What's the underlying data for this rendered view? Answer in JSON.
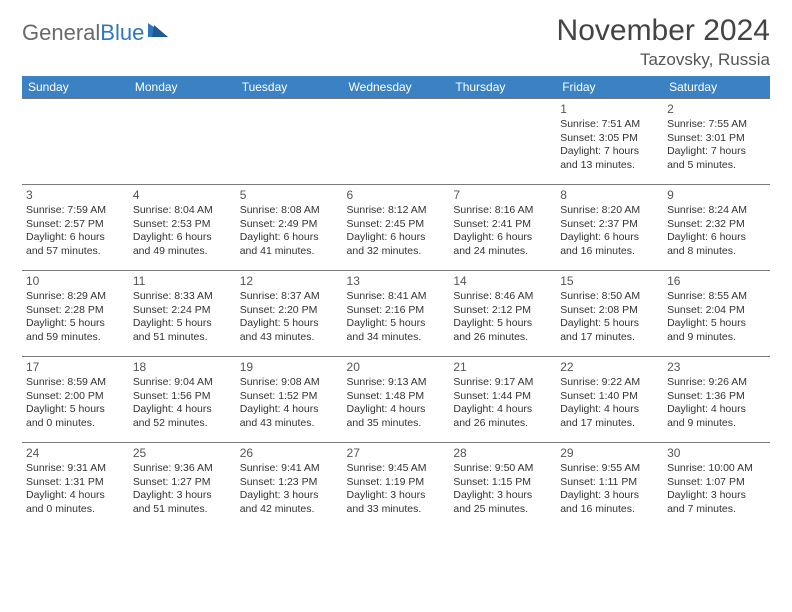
{
  "logo": {
    "word1": "General",
    "word2": "Blue"
  },
  "title": "November 2024",
  "location": "Tazovsky, Russia",
  "colors": {
    "header_bg": "#3a82c4",
    "header_fg": "#ffffff",
    "grid_line": "#7a7a7a",
    "text": "#333333",
    "logo_gray": "#6a6a6a",
    "logo_blue": "#2f78bf"
  },
  "day_headers": [
    "Sunday",
    "Monday",
    "Tuesday",
    "Wednesday",
    "Thursday",
    "Friday",
    "Saturday"
  ],
  "weeks": [
    [
      null,
      null,
      null,
      null,
      null,
      {
        "n": "1",
        "sr": "7:51 AM",
        "ss": "3:05 PM",
        "dl": "7 hours and 13 minutes."
      },
      {
        "n": "2",
        "sr": "7:55 AM",
        "ss": "3:01 PM",
        "dl": "7 hours and 5 minutes."
      }
    ],
    [
      {
        "n": "3",
        "sr": "7:59 AM",
        "ss": "2:57 PM",
        "dl": "6 hours and 57 minutes."
      },
      {
        "n": "4",
        "sr": "8:04 AM",
        "ss": "2:53 PM",
        "dl": "6 hours and 49 minutes."
      },
      {
        "n": "5",
        "sr": "8:08 AM",
        "ss": "2:49 PM",
        "dl": "6 hours and 41 minutes."
      },
      {
        "n": "6",
        "sr": "8:12 AM",
        "ss": "2:45 PM",
        "dl": "6 hours and 32 minutes."
      },
      {
        "n": "7",
        "sr": "8:16 AM",
        "ss": "2:41 PM",
        "dl": "6 hours and 24 minutes."
      },
      {
        "n": "8",
        "sr": "8:20 AM",
        "ss": "2:37 PM",
        "dl": "6 hours and 16 minutes."
      },
      {
        "n": "9",
        "sr": "8:24 AM",
        "ss": "2:32 PM",
        "dl": "6 hours and 8 minutes."
      }
    ],
    [
      {
        "n": "10",
        "sr": "8:29 AM",
        "ss": "2:28 PM",
        "dl": "5 hours and 59 minutes."
      },
      {
        "n": "11",
        "sr": "8:33 AM",
        "ss": "2:24 PM",
        "dl": "5 hours and 51 minutes."
      },
      {
        "n": "12",
        "sr": "8:37 AM",
        "ss": "2:20 PM",
        "dl": "5 hours and 43 minutes."
      },
      {
        "n": "13",
        "sr": "8:41 AM",
        "ss": "2:16 PM",
        "dl": "5 hours and 34 minutes."
      },
      {
        "n": "14",
        "sr": "8:46 AM",
        "ss": "2:12 PM",
        "dl": "5 hours and 26 minutes."
      },
      {
        "n": "15",
        "sr": "8:50 AM",
        "ss": "2:08 PM",
        "dl": "5 hours and 17 minutes."
      },
      {
        "n": "16",
        "sr": "8:55 AM",
        "ss": "2:04 PM",
        "dl": "5 hours and 9 minutes."
      }
    ],
    [
      {
        "n": "17",
        "sr": "8:59 AM",
        "ss": "2:00 PM",
        "dl": "5 hours and 0 minutes."
      },
      {
        "n": "18",
        "sr": "9:04 AM",
        "ss": "1:56 PM",
        "dl": "4 hours and 52 minutes."
      },
      {
        "n": "19",
        "sr": "9:08 AM",
        "ss": "1:52 PM",
        "dl": "4 hours and 43 minutes."
      },
      {
        "n": "20",
        "sr": "9:13 AM",
        "ss": "1:48 PM",
        "dl": "4 hours and 35 minutes."
      },
      {
        "n": "21",
        "sr": "9:17 AM",
        "ss": "1:44 PM",
        "dl": "4 hours and 26 minutes."
      },
      {
        "n": "22",
        "sr": "9:22 AM",
        "ss": "1:40 PM",
        "dl": "4 hours and 17 minutes."
      },
      {
        "n": "23",
        "sr": "9:26 AM",
        "ss": "1:36 PM",
        "dl": "4 hours and 9 minutes."
      }
    ],
    [
      {
        "n": "24",
        "sr": "9:31 AM",
        "ss": "1:31 PM",
        "dl": "4 hours and 0 minutes."
      },
      {
        "n": "25",
        "sr": "9:36 AM",
        "ss": "1:27 PM",
        "dl": "3 hours and 51 minutes."
      },
      {
        "n": "26",
        "sr": "9:41 AM",
        "ss": "1:23 PM",
        "dl": "3 hours and 42 minutes."
      },
      {
        "n": "27",
        "sr": "9:45 AM",
        "ss": "1:19 PM",
        "dl": "3 hours and 33 minutes."
      },
      {
        "n": "28",
        "sr": "9:50 AM",
        "ss": "1:15 PM",
        "dl": "3 hours and 25 minutes."
      },
      {
        "n": "29",
        "sr": "9:55 AM",
        "ss": "1:11 PM",
        "dl": "3 hours and 16 minutes."
      },
      {
        "n": "30",
        "sr": "10:00 AM",
        "ss": "1:07 PM",
        "dl": "3 hours and 7 minutes."
      }
    ]
  ],
  "labels": {
    "sunrise_prefix": "Sunrise: ",
    "sunset_prefix": "Sunset: ",
    "daylight_prefix": "Daylight: "
  }
}
